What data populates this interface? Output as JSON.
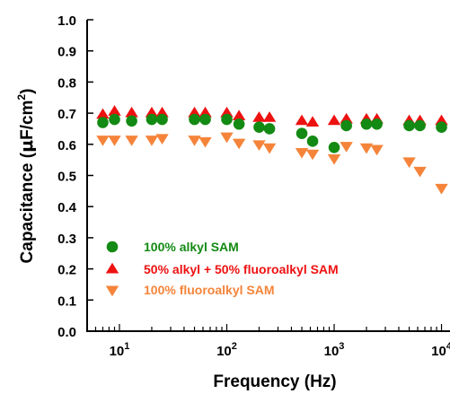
{
  "chart_data": {
    "type": "scatter",
    "title": "",
    "xlabel": "Frequency (Hz)",
    "ylabel": {
      "prefix": "Capacitance (",
      "mu": "μ",
      "mid": "F/cm",
      "sup": "2",
      "suffix": ")"
    },
    "x_scale": "log",
    "xlim": [
      5,
      12000
    ],
    "ylim": [
      0.0,
      1.0
    ],
    "y_ticks": [
      "0.0",
      "0.1",
      "0.2",
      "0.3",
      "0.4",
      "0.5",
      "0.6",
      "0.7",
      "0.8",
      "0.9",
      "1.0"
    ],
    "x_ticks": [
      {
        "value": 10,
        "base": "10",
        "exp": "1"
      },
      {
        "value": 100,
        "base": "10",
        "exp": "2"
      },
      {
        "value": 1000,
        "base": "10",
        "exp": "3"
      },
      {
        "value": 10000,
        "base": "10",
        "exp": "4"
      }
    ],
    "grid": false,
    "legend_position": "bottom-left",
    "series": [
      {
        "name": "100% alkyl SAM",
        "marker": "circle",
        "color": "#138A13",
        "x": [
          7,
          9,
          13,
          20,
          25,
          50,
          63,
          100,
          130,
          200,
          250,
          500,
          630,
          1000,
          1300,
          2000,
          2500,
          5000,
          6300,
          10000
        ],
        "y": [
          0.67,
          0.68,
          0.675,
          0.68,
          0.68,
          0.68,
          0.68,
          0.68,
          0.665,
          0.655,
          0.65,
          0.635,
          0.61,
          0.59,
          0.66,
          0.665,
          0.665,
          0.66,
          0.66,
          0.655
        ]
      },
      {
        "name": "50% alkyl + 50% fluoroalkyl SAM",
        "marker": "triangle-up",
        "color": "#EE1111",
        "x": [
          7,
          9,
          13,
          20,
          25,
          50,
          63,
          100,
          130,
          200,
          250,
          500,
          630,
          1000,
          1300,
          2000,
          2500,
          5000,
          6300,
          10000
        ],
        "y": [
          0.695,
          0.705,
          0.7,
          0.7,
          0.7,
          0.7,
          0.7,
          0.7,
          0.69,
          0.685,
          0.685,
          0.675,
          0.67,
          0.675,
          0.68,
          0.68,
          0.68,
          0.675,
          0.675,
          0.675
        ]
      },
      {
        "name": "100% fluoroalkyl SAM",
        "marker": "triangle-down",
        "color": "#F5843A",
        "x": [
          7,
          9,
          13,
          20,
          25,
          50,
          63,
          100,
          130,
          200,
          250,
          500,
          630,
          1000,
          1300,
          2000,
          2500,
          5000,
          6300,
          10000
        ],
        "y": [
          0.615,
          0.615,
          0.615,
          0.615,
          0.62,
          0.615,
          0.61,
          0.625,
          0.605,
          0.6,
          0.59,
          0.575,
          0.57,
          0.555,
          0.595,
          0.59,
          0.585,
          0.545,
          0.515,
          0.46
        ]
      }
    ]
  }
}
